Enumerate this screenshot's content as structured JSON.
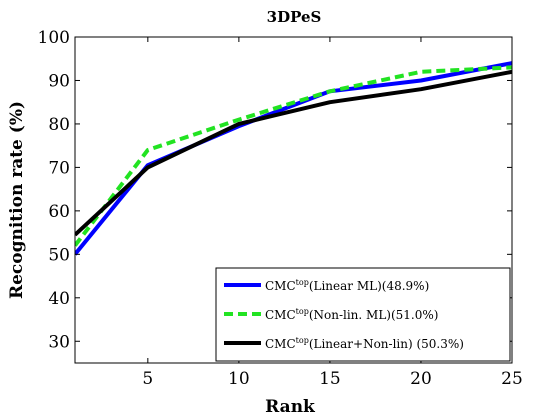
{
  "chart_data": {
    "type": "line",
    "title": "3DPeS",
    "xlabel": "Rank",
    "ylabel": "Recognition rate (%)",
    "xlim": [
      1,
      25
    ],
    "ylim": [
      25,
      100
    ],
    "xticks": [
      5,
      10,
      15,
      20,
      25
    ],
    "yticks": [
      30,
      40,
      50,
      60,
      70,
      80,
      90,
      100
    ],
    "grid": false,
    "legend_position": "bottom-right",
    "series": [
      {
        "name_prefix": "CMC",
        "name_sup": "top",
        "name_suffix": "(Linear ML)(48.9%)",
        "color": "#0000ff",
        "dash": "solid",
        "x": [
          1,
          5,
          10,
          15,
          20,
          25
        ],
        "y": [
          50,
          70.5,
          79.5,
          87.5,
          90,
          94
        ]
      },
      {
        "name_prefix": "CMC",
        "name_sup": "top",
        "name_suffix": "(Non-lin. ML)(51.0%)",
        "color": "#22e322",
        "dash": "dashed",
        "x": [
          1,
          5,
          10,
          15,
          20,
          25
        ],
        "y": [
          52,
          74,
          81,
          87.5,
          92,
          93
        ]
      },
      {
        "name_prefix": "CMC",
        "name_sup": "top",
        "name_suffix": "(Linear+Non-lin) (50.3%)",
        "color": "#000000",
        "dash": "solid",
        "x": [
          1,
          5,
          10,
          12,
          15,
          20,
          25
        ],
        "y": [
          54.5,
          70,
          80,
          82,
          85,
          88,
          92
        ]
      }
    ]
  }
}
